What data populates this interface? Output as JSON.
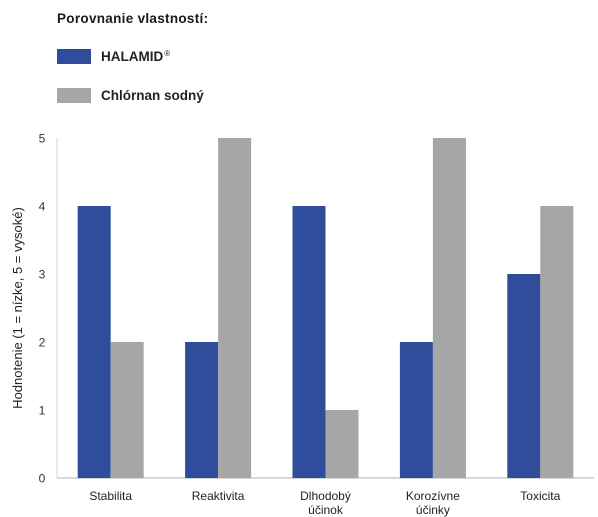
{
  "title": "Porovnanie vlastností:",
  "legend": [
    {
      "label": "HALAMID",
      "sup": "®",
      "color": "#2f4d9a"
    },
    {
      "label": "Chlórnan sodný",
      "sup": "",
      "color": "#a6a6a6"
    }
  ],
  "chart_data": {
    "type": "bar",
    "title": "Porovnanie vlastností:",
    "ylabel": "Hodnotenie (1 = nízke, 5 = vysoké)",
    "xlabel": "",
    "ylim": [
      0,
      5
    ],
    "yticks": [
      0,
      1,
      2,
      3,
      4,
      5
    ],
    "grid": false,
    "legend_position": "top-left",
    "categories": [
      [
        "Stabilita"
      ],
      [
        "Reaktivita"
      ],
      [
        "Dlhodobý",
        "účinok"
      ],
      [
        "Korozívne",
        "účinky"
      ],
      [
        "Toxicita"
      ]
    ],
    "series": [
      {
        "name": "HALAMID®",
        "color": "#2f4d9a",
        "values": [
          4,
          2,
          4,
          2,
          3
        ]
      },
      {
        "name": "Chlórnan sodný",
        "color": "#a6a6a6",
        "values": [
          2,
          5,
          1,
          5,
          4
        ]
      }
    ]
  }
}
